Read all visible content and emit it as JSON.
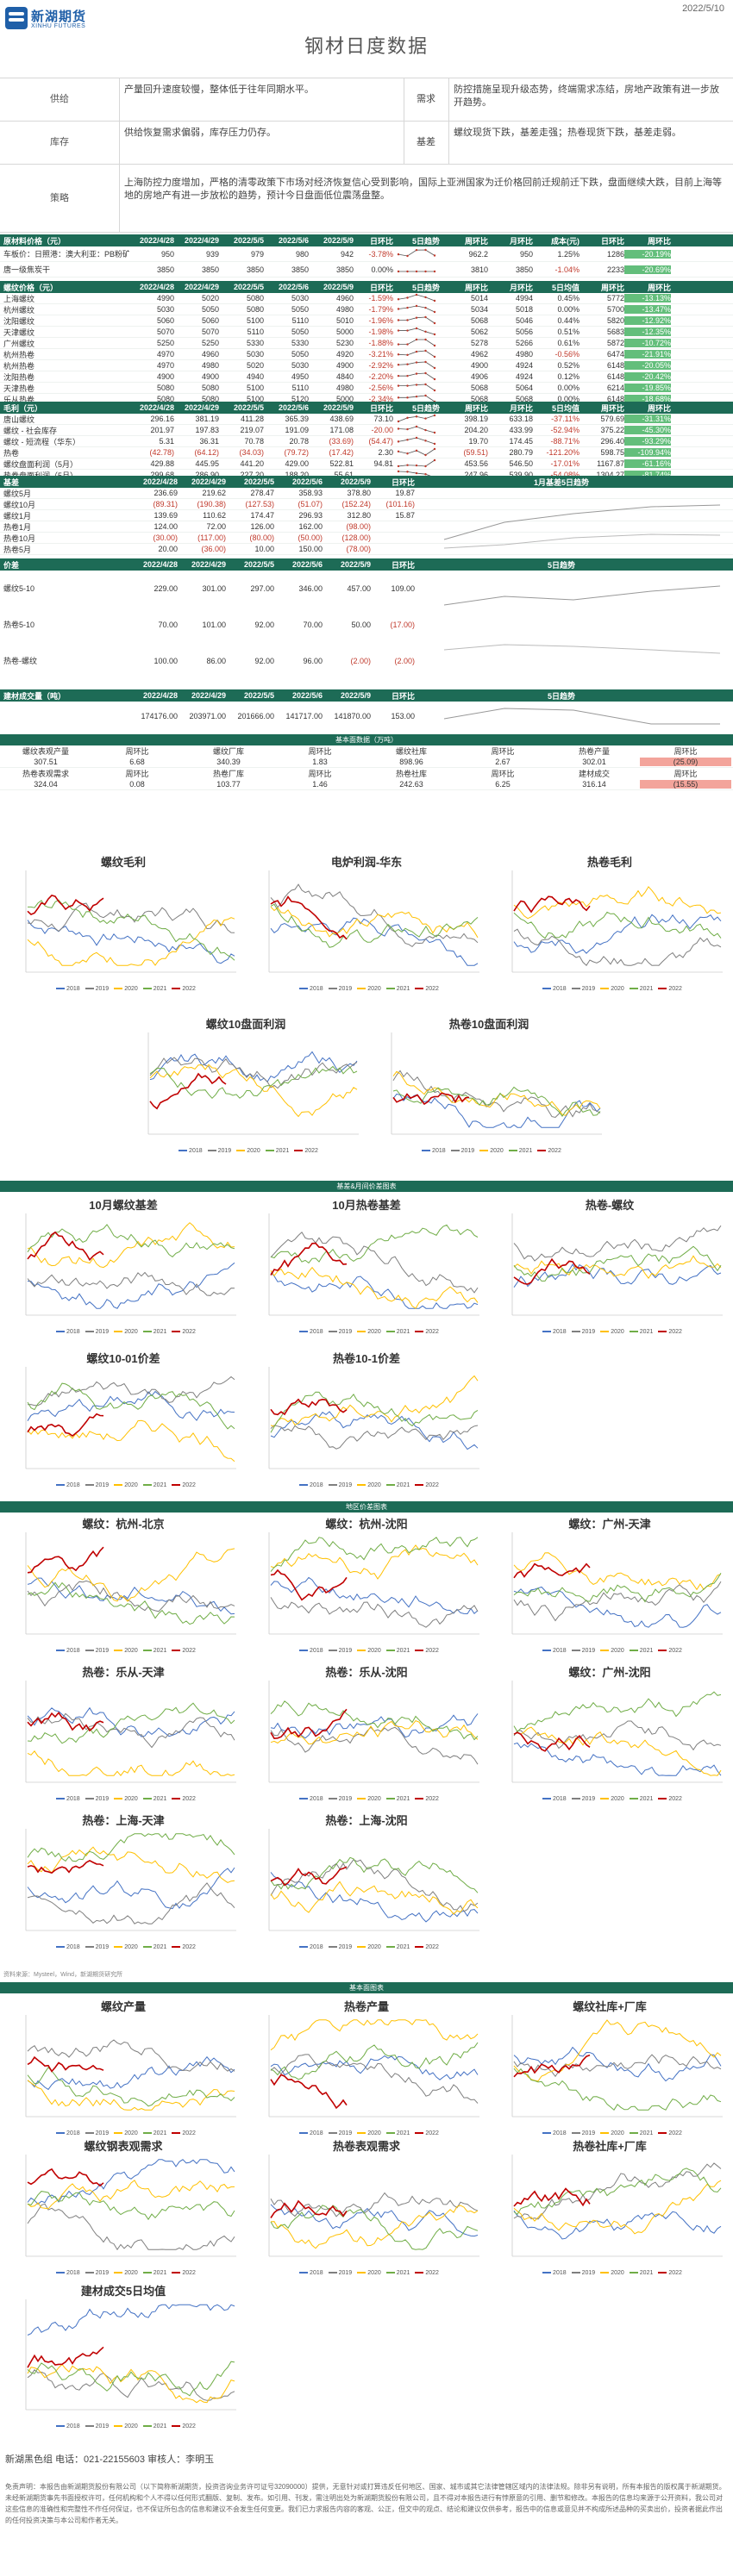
{
  "header": {
    "company_cn": "新湖期货",
    "company_en": "XINHU FUTURES",
    "date": "2022/5/10",
    "title": "钢材日度数据"
  },
  "summary": {
    "row1": {
      "label_a": "供给",
      "text_a": "产量回升速度较慢，整体低于往年同期水平。",
      "label_b": "需求",
      "text_b": "防控措施呈现升级态势，终端需求冻结，房地产政策有进一步放开趋势。"
    },
    "row2": {
      "label_a": "库存",
      "text_a": "供给恢复需求偏弱，库存压力仍存。",
      "label_b": "基差",
      "text_b": "螺纹现货下跌，基差走强；热卷现货下跌，基差走弱。"
    },
    "row3": {
      "label": "策略",
      "text": "上海防控力度增加，严格的清零政策下市场对经济恢复信心受到影响，国际上亚洲国家为迁价格回前迁规前迁下跌，盘面继续大跌，目前上海等地的房地产有进一步放松的趋势，预计今日盘面低位震荡盘整。"
    }
  },
  "cost_table": {
    "headers": [
      "原材料价格（元）",
      "2022/4/28",
      "2022/4/29",
      "2022/5/5",
      "2022/5/6",
      "2022/5/9",
      "日环比",
      "5日趋势",
      "周环比",
      "月环比",
      "成本(元)",
      "日环比",
      "周环比"
    ],
    "rows": [
      [
        "车板价：日照港：澳大利亚：PB粉矿 61.5%",
        "950",
        "939",
        "979",
        "980",
        "942",
        "-3.78%",
        "",
        "962.2",
        "950",
        "1.25%",
        "1286",
        "-20.19%"
      ],
      [
        "唐一级焦炭干",
        "3850",
        "3850",
        "3850",
        "3850",
        "3850",
        "0.00%",
        "",
        "3810",
        "3850",
        "-1.04%",
        "2233",
        "-20.69%"
      ]
    ]
  },
  "rebar_table": {
    "headers": [
      "螺纹价格（元）",
      "2022/4/28",
      "2022/4/29",
      "2022/5/5",
      "2022/5/6",
      "2022/5/9",
      "日环比",
      "5日趋势",
      "周环比",
      "月环比",
      "5日均值",
      "周环比",
      "周环比"
    ],
    "rows": [
      [
        "上海螺纹",
        "4990",
        "5020",
        "5080",
        "5030",
        "4960",
        "-1.59%",
        "",
        "5014",
        "4994",
        "0.45%",
        "5772",
        "-13.13%"
      ],
      [
        "杭州螺纹",
        "5030",
        "5050",
        "5080",
        "5050",
        "4980",
        "-1.79%",
        "",
        "5034",
        "5018",
        "0.00%",
        "5700",
        "-13.47%"
      ],
      [
        "沈阳螺纹",
        "5060",
        "5060",
        "5100",
        "5110",
        "5010",
        "-1.96%",
        "",
        "5068",
        "5046",
        "0.44%",
        "5820",
        "-12.92%"
      ],
      [
        "天津螺纹",
        "5070",
        "5070",
        "5110",
        "5050",
        "5000",
        "-1.98%",
        "",
        "5062",
        "5056",
        "0.51%",
        "5683",
        "-12.35%"
      ],
      [
        "广州螺纹",
        "5250",
        "5250",
        "5330",
        "5330",
        "5230",
        "-1.88%",
        "",
        "5278",
        "5266",
        "0.61%",
        "5872",
        "-10.72%"
      ],
      [
        "杭州热卷",
        "4970",
        "4960",
        "5030",
        "5050",
        "4920",
        "-3.21%",
        "",
        "4962",
        "4980",
        "-0.56%",
        "6474",
        "-21.91%"
      ],
      [
        "杭州热卷",
        "4970",
        "4980",
        "5020",
        "5030",
        "4900",
        "-2.92%",
        "",
        "4900",
        "4924",
        "0.52%",
        "6148",
        "-20.05%"
      ],
      [
        "沈阳热卷",
        "4900",
        "4900",
        "4940",
        "4950",
        "4840",
        "-2.20%",
        "",
        "4906",
        "4924",
        "0.12%",
        "6148",
        "-20.42%"
      ],
      [
        "天津热卷",
        "5080",
        "5080",
        "5100",
        "5110",
        "4980",
        "-2.56%",
        "",
        "5068",
        "5064",
        "0.00%",
        "6214",
        "-19.85%"
      ],
      [
        "乐从热卷",
        "5080",
        "5080",
        "5100",
        "5120",
        "5000",
        "-2.34%",
        "",
        "5068",
        "5068",
        "0.00%",
        "6148",
        "-18.68%"
      ]
    ]
  },
  "profit_table": {
    "headers": [
      "毛利（元）",
      "2022/4/28",
      "2022/4/29",
      "2022/5/5",
      "2022/5/6",
      "2022/5/9",
      "日环比",
      "5日趋势",
      "周环比",
      "月环比",
      "5日均值",
      "周环比",
      "周环比"
    ],
    "rows": [
      [
        "唐山螺纹",
        "296.16",
        "381.19",
        "411.28",
        "365.39",
        "438.69",
        "73.10",
        "",
        "398.19",
        "633.18",
        "-37.11%",
        "579.69",
        "-31.31%"
      ],
      [
        "螺纹 - 社会库存",
        "201.97",
        "197.83",
        "219.07",
        "191.09",
        "171.08",
        "-20.00",
        "",
        "204.20",
        "433.99",
        "-52.94%",
        "375.22",
        "-45.30%"
      ],
      [
        "螺纹 - 短流程（华东）",
        "5.31",
        "36.31",
        "70.78",
        "20.78",
        "(33.69)",
        "(54.47)",
        "",
        "19.70",
        "174.45",
        "-88.71%",
        "296.40",
        "-93.29%"
      ],
      [
        "热卷",
        "(42.78)",
        "(64.12)",
        "(34.03)",
        "(79.72)",
        "(17.42)",
        "2.30",
        "",
        "(59.51)",
        "280.79",
        "-121.20%",
        "598.75",
        "-109.94%"
      ],
      [
        "螺纹盘面利润（5月）",
        "429.88",
        "445.95",
        "441.20",
        "429.00",
        "522.81",
        "94.81",
        "",
        "453.56",
        "546.50",
        "-17.01%",
        "1167.87",
        "-61.16%"
      ],
      [
        "热卷盘面利润（5月）",
        "299.68",
        "286.90",
        "227.20",
        "188.20",
        "55.61",
        "",
        "",
        "247.96",
        "539.90",
        "-54.08%",
        "1304.27",
        "-81.74%"
      ]
    ]
  },
  "basis_table": {
    "headers": [
      "基差",
      "2022/4/28",
      "2022/4/29",
      "2022/5/5",
      "2022/5/6",
      "2022/5/9",
      "日环比"
    ],
    "rows": [
      [
        "螺纹5月",
        "236.69",
        "219.62",
        "278.47",
        "358.93",
        "378.80",
        "19.87"
      ],
      [
        "螺纹10月",
        "(89.31)",
        "(190.38)",
        "(127.53)",
        "(51.07)",
        "(152.24)",
        "(101.16)"
      ],
      [
        "螺纹1月",
        "139.69",
        "110.62",
        "174.47",
        "296.93",
        "312.80",
        "15.87"
      ],
      [
        "热卷1月",
        "124.00",
        "72.00",
        "126.00",
        "162.00",
        "(98.00)",
        ""
      ],
      [
        "热卷10月",
        "(30.00)",
        "(117.00)",
        "(80.00)",
        "(50.00)",
        "(128.00)",
        ""
      ],
      [
        "热卷5月",
        "20.00",
        "(36.00)",
        "10.00",
        "150.00",
        "(78.00)",
        ""
      ]
    ],
    "chart_label": "1月基差5日趋势"
  },
  "spread_table": {
    "headers": [
      "价差",
      "2022/4/28",
      "2022/4/29",
      "2022/5/5",
      "2022/5/6",
      "2022/5/9",
      "日环比"
    ],
    "rows": [
      [
        "螺纹5-10",
        "229.00",
        "301.00",
        "297.00",
        "346.00",
        "457.00",
        "109.00"
      ],
      [
        "热卷5-10",
        "70.00",
        "101.00",
        "92.00",
        "70.00",
        "50.00",
        "(17.00)"
      ],
      [
        "热卷-螺纹",
        "100.00",
        "86.00",
        "92.00",
        "96.00",
        "(2.00)",
        "(2.00)"
      ]
    ],
    "chart_label": "5日趋势"
  },
  "volume_table": {
    "headers": [
      "建材成交量（吨）",
      "2022/4/28",
      "2022/4/29",
      "2022/5/5",
      "2022/5/6",
      "2022/5/9",
      "日环比"
    ],
    "row": [
      "",
      "174176.00",
      "203971.00",
      "201666.00",
      "141717.00",
      "141870.00",
      "153.00"
    ],
    "chart_label": "5日趋势"
  },
  "fundamental": {
    "band": "基本面数据（万吨）",
    "headers": [
      "螺纹表观产量",
      "周环比",
      "螺纹厂库",
      "周环比",
      "螺纹社库",
      "周环比",
      "热卷产量",
      "周环比"
    ],
    "row1": [
      "307.51",
      "6.68",
      "340.39",
      "1.83",
      "898.96",
      "2.67",
      "302.01",
      "(25.09)"
    ],
    "headers2": [
      "热卷表观需求",
      "周环比",
      "热卷厂库",
      "周环比",
      "热卷社库",
      "周环比",
      "建材成交",
      "周环比"
    ],
    "row2": [
      "324.04",
      "0.08",
      "103.77",
      "1.46",
      "242.63",
      "6.25",
      "316.14",
      "(15.55)"
    ]
  },
  "sections": {
    "basis_band": "基差&月间价差图表",
    "spread_band": "地区价差图表",
    "fund_band": "基本面图表"
  },
  "charts": {
    "profit1": "螺纹毛利",
    "profit2": "电炉利润-华东",
    "profit3": "热卷毛利",
    "profit4": "螺纹10盘面利润",
    "profit5": "热卷10盘面利润",
    "basis1": "10月螺纹基差",
    "basis2": "10月热卷基差",
    "basis3": "热卷-螺纹",
    "basis4": "螺纹10-01价差",
    "basis5": "热卷10-1价差",
    "reg1": "螺纹：杭州-北京",
    "reg2": "螺纹：杭州-沈阳",
    "reg3": "螺纹：广州-天津",
    "reg4": "热卷：乐从-天津",
    "reg5": "热卷：乐从-沈阳",
    "reg6": "螺纹：广州-沈阳",
    "reg7": "热卷：上海-天津",
    "reg8": "热卷：上海-沈阳",
    "fund1": "螺纹产量",
    "fund2": "热卷产量",
    "fund3": "螺纹社库+厂库",
    "fund4": "螺纹钢表观需求",
    "fund5": "热卷表观需求",
    "fund6": "热卷社库+厂库",
    "fund7": "建材成交5日均值"
  },
  "legend": [
    "2018",
    "2019",
    "2020",
    "2021",
    "2022"
  ],
  "source_note": "资料来源：Mysteel，Wind，新湖期货研究所",
  "colors": {
    "accent": "#1d6b56",
    "s2018": "#4472c4",
    "s2019": "#7f7f7f",
    "s2020": "#ffc000",
    "s2021": "#70ad47",
    "s2022": "#c00000"
  },
  "footer": {
    "contact": "新湖黑色组    电话：021-22155603  审核人：李明玉",
    "disclaimer": "免责声明：本报告由新湖期货股份有限公司（以下简称新湖期货，投资咨询业务许可证号32090000）提供，无意针对或打算违反任何地区、国家、城市或其它法律管辖区域内的法律法规。除非另有说明，所有本报告的版权属于新湖期货。未经新湖期货事先书面授权许可，任何机构和个人不得以任何形式翻版、复制、发布。如引用、刊发，需注明出处为新湖期货股份有限公司，且不得对本报告进行有悖原意的引用、删节和修改。本报告的信息均来源于公开资料，我公司对这些信息的准确性和完整性不作任何保证，也不保证所包含的信息和建议不会发生任何变更。我们已力求报告内容的客观、公正，但文中的观点、结论和建议仅供参考，报告中的信息或意见并不构成所述品种的买卖出价，投资者据此作出的任何投资决策与本公司和作者无关。"
  }
}
